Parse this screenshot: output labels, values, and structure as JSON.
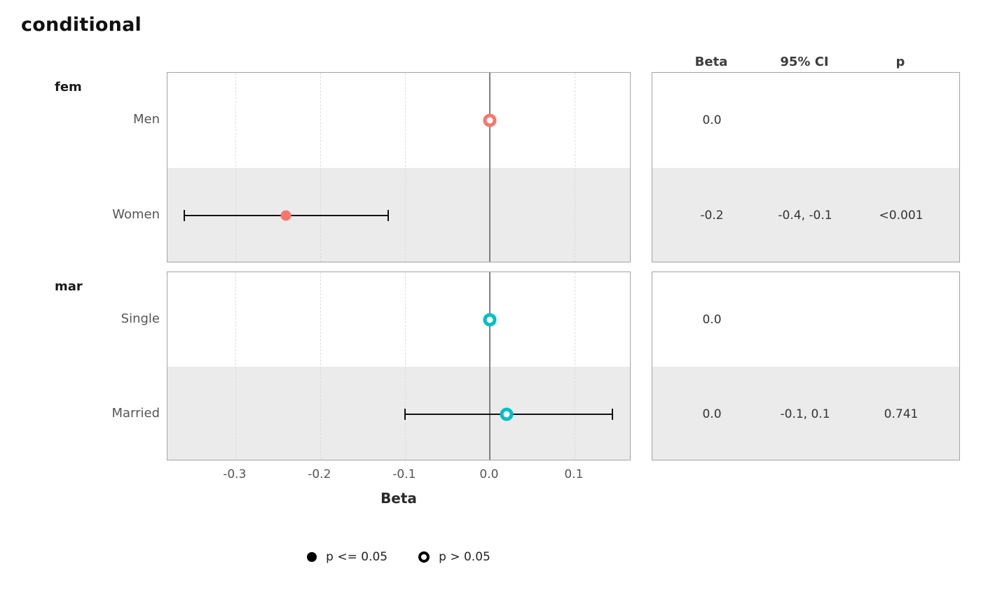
{
  "title": "conditional",
  "axis": {
    "label": "Beta"
  },
  "table": {
    "headers": [
      "Beta",
      "95% CI",
      "p"
    ]
  },
  "legend": [
    {
      "marker": "filled-circle",
      "label": "p <= 0.05"
    },
    {
      "marker": "open-circle",
      "label": "p > 0.05"
    }
  ],
  "colors": {
    "fem": "#F8766D",
    "mar": "#00BFC4",
    "stripe": "#EBEBEB",
    "zero_line": "#7F7F7F",
    "gridline": "#DCDCDC",
    "panel_border": "#A3A3A3"
  },
  "chart_data": {
    "type": "forest",
    "title": "conditional",
    "xlabel": "Beta",
    "xlim": [
      -0.38,
      0.167
    ],
    "xticks": [
      -0.3,
      -0.2,
      -0.1,
      0.0,
      0.1
    ],
    "xtick_labels": [
      "-0.3",
      "-0.2",
      "-0.1",
      "0.0",
      "0.1"
    ],
    "legend_position": "bottom",
    "grid": "dashed-vertical",
    "groups": [
      {
        "name": "fem",
        "color": "#F8766D",
        "rows": [
          {
            "label": "Men",
            "estimate": 0.0,
            "ci_low": null,
            "ci_high": null,
            "significant": false,
            "striped": false,
            "beta_text": "0.0",
            "ci_text": "",
            "p_text": ""
          },
          {
            "label": "Women",
            "estimate": -0.24,
            "ci_low": -0.36,
            "ci_high": -0.12,
            "significant": true,
            "striped": true,
            "beta_text": "-0.2",
            "ci_text": "-0.4, -0.1",
            "p_text": "<0.001"
          }
        ]
      },
      {
        "name": "mar",
        "color": "#00BFC4",
        "rows": [
          {
            "label": "Single",
            "estimate": 0.0,
            "ci_low": null,
            "ci_high": null,
            "significant": false,
            "striped": false,
            "beta_text": "0.0",
            "ci_text": "",
            "p_text": ""
          },
          {
            "label": "Married",
            "estimate": 0.02,
            "ci_low": -0.1,
            "ci_high": 0.145,
            "significant": false,
            "striped": true,
            "beta_text": "0.0",
            "ci_text": "-0.1, 0.1",
            "p_text": "0.741"
          }
        ]
      }
    ]
  }
}
